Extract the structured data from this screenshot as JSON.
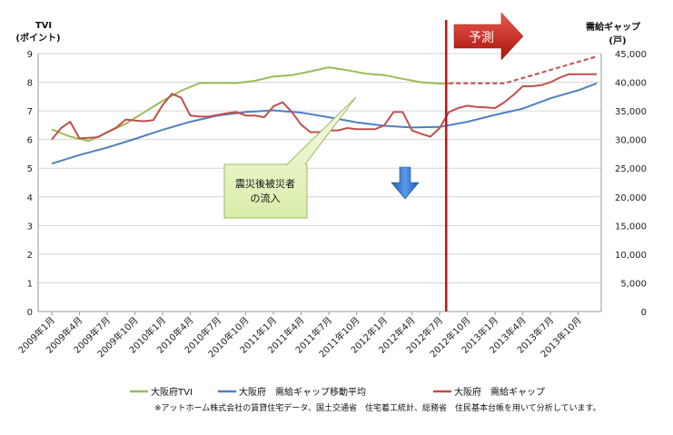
{
  "chart_data": {
    "type": "line",
    "left_axis_title": "TVI",
    "left_axis_unit": "(ポイント)",
    "right_axis_title": "需給ギャップ",
    "right_axis_unit": "(戸)",
    "left_ylim": [
      0,
      9
    ],
    "left_ticks": [
      "0",
      "1",
      "2",
      "3",
      "4",
      "5",
      "6",
      "7",
      "8",
      "9"
    ],
    "right_ylim": [
      0,
      45000
    ],
    "right_ticks": [
      "0",
      "5,000",
      "10,000",
      "15,000",
      "20,000",
      "25,000",
      "30,000",
      "35,000",
      "40,000",
      "45,000"
    ],
    "x_start": "2009-01",
    "x_end": "2013-12",
    "x_tick_labels": [
      "2009年1月",
      "2009年4月",
      "2009年7月",
      "2009年10月",
      "2010年1月",
      "2010年4月",
      "2010年7月",
      "2010年10月",
      "2011年1月",
      "2011年4月",
      "2011年7月",
      "2011年10月",
      "2012年1月",
      "2012年4月",
      "2012年7月",
      "2012年10月",
      "2013年1月",
      "2013年4月",
      "2013年7月",
      "2013年10月"
    ],
    "grid": true,
    "legend_position": "bottom",
    "forecast_label": "予測",
    "forecast_start": "2012-08",
    "callout": {
      "lines": [
        "震災後被災者",
        "の流入"
      ]
    },
    "series": [
      {
        "name": "大阪府TVI",
        "axis": "left",
        "color": "#9bbb59",
        "x": [
          "2009-01",
          "2009-03",
          "2009-05",
          "2009-07",
          "2009-09",
          "2009-11",
          "2010-01",
          "2010-03",
          "2010-05",
          "2010-07",
          "2010-09",
          "2010-11",
          "2011-01",
          "2011-03",
          "2011-05",
          "2011-07",
          "2011-09",
          "2011-11",
          "2012-01",
          "2012-03",
          "2012-05",
          "2012-07",
          "2012-08"
        ],
        "values": [
          6.35,
          6.1,
          5.95,
          6.25,
          6.55,
          6.95,
          7.35,
          7.7,
          7.97,
          7.98,
          7.97,
          8.05,
          8.2,
          8.25,
          8.38,
          8.52,
          8.42,
          8.3,
          8.25,
          8.12,
          8.0,
          7.95,
          7.95
        ]
      },
      {
        "name": "大阪府　需給ギャップ移動平均",
        "axis": "right",
        "color": "#4f81bd",
        "x": [
          "2009-01",
          "2009-04",
          "2009-07",
          "2009-10",
          "2010-01",
          "2010-04",
          "2010-07",
          "2010-10",
          "2011-01",
          "2011-04",
          "2011-07",
          "2011-10",
          "2012-01",
          "2012-04",
          "2012-07",
          "2012-10",
          "2013-01",
          "2013-04",
          "2013-07",
          "2013-10",
          "2013-12"
        ],
        "values": [
          25800,
          27300,
          28600,
          30100,
          31700,
          33100,
          34200,
          34800,
          35100,
          34700,
          33900,
          33000,
          32400,
          32100,
          32200,
          33100,
          34300,
          35400,
          37200,
          38600,
          39800
        ]
      },
      {
        "name": "大阪府　需給ギャップ",
        "axis": "right",
        "color": "#c0504d",
        "x": [
          "2009-01",
          "2009-02",
          "2009-03",
          "2009-04",
          "2009-05",
          "2009-06",
          "2009-07",
          "2009-08",
          "2009-09",
          "2009-10",
          "2009-11",
          "2009-12",
          "2010-01",
          "2010-02",
          "2010-03",
          "2010-04",
          "2010-05",
          "2010-06",
          "2010-07",
          "2010-08",
          "2010-09",
          "2010-10",
          "2010-11",
          "2010-12",
          "2011-01",
          "2011-02",
          "2011-03",
          "2011-04",
          "2011-05",
          "2011-06",
          "2011-07",
          "2011-08",
          "2011-09",
          "2011-10",
          "2011-11",
          "2011-12",
          "2012-01",
          "2012-02",
          "2012-03",
          "2012-04",
          "2012-05",
          "2012-06",
          "2012-07",
          "2012-08",
          "2012-09",
          "2012-10",
          "2012-11",
          "2012-12",
          "2013-01",
          "2013-02",
          "2013-03",
          "2013-04",
          "2013-05",
          "2013-06",
          "2013-07",
          "2013-08",
          "2013-09",
          "2013-10",
          "2013-11",
          "2013-12"
        ],
        "values": [
          30000,
          32000,
          33100,
          30200,
          30300,
          30400,
          31300,
          32100,
          33500,
          33300,
          33200,
          33400,
          36000,
          38000,
          37300,
          34200,
          34000,
          34000,
          34300,
          34600,
          34800,
          34200,
          34200,
          33900,
          35800,
          36500,
          34800,
          32600,
          31300,
          31300,
          31600,
          31600,
          32000,
          31800,
          31800,
          31800,
          32500,
          34800,
          34800,
          31600,
          31000,
          30500,
          32000,
          34800,
          35500,
          35900,
          35700,
          35600,
          35500,
          36500,
          37800,
          39300,
          39300,
          39500,
          40000,
          40800,
          41400,
          41400,
          41400,
          41400
        ],
        "forecast": [
          {
            "x": "2012-08",
            "value": 39800
          },
          {
            "x": "2013-02",
            "value": 39800
          },
          {
            "x": "2013-12",
            "value": 44500
          }
        ]
      }
    ],
    "note": "※アットホーム株式会社の賃貸住宅データ、国土交通省　住宅着工統計、総務省　住民基本台帳を用いて分析しています。"
  }
}
